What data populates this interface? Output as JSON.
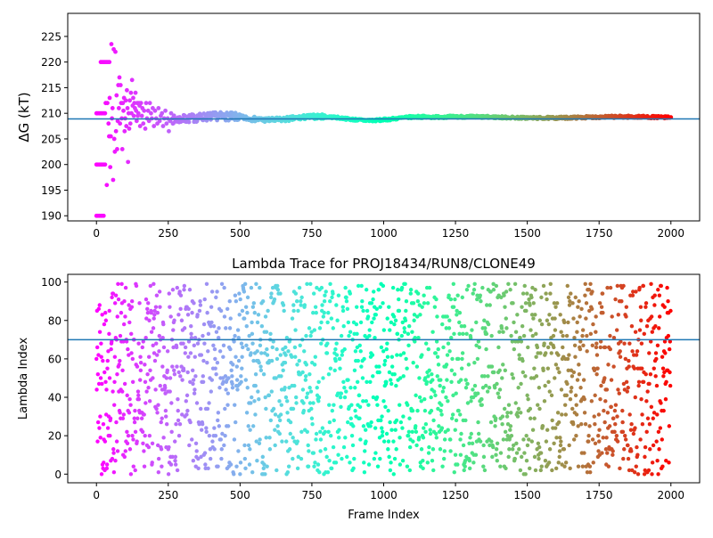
{
  "chart_data": [
    {
      "type": "scatter",
      "title": "",
      "xlabel": "",
      "ylabel": "ΔG (kT)",
      "xlim": [
        -100,
        2100
      ],
      "ylim": [
        189,
        229.5
      ],
      "xticks": [
        0,
        250,
        500,
        750,
        1000,
        1250,
        1500,
        1750,
        2000
      ],
      "yticks": [
        190,
        195,
        200,
        205,
        210,
        215,
        220,
        225
      ],
      "colormap": "rainbow",
      "hline": 208.9,
      "hline_color": "#1f77b4",
      "series": [
        {
          "points": [
            [
              0,
              190
            ],
            [
              5,
              190
            ],
            [
              10,
              190
            ],
            [
              15,
              190
            ],
            [
              20,
              190
            ],
            [
              25,
              190
            ],
            [
              0,
              200
            ],
            [
              5,
              200
            ],
            [
              10,
              200
            ],
            [
              15,
              200
            ],
            [
              20,
              200
            ],
            [
              25,
              200
            ],
            [
              30,
              200
            ],
            [
              0,
              210
            ],
            [
              5,
              210
            ],
            [
              10,
              210
            ],
            [
              15,
              210
            ],
            [
              20,
              210
            ],
            [
              25,
              210
            ],
            [
              30,
              210
            ],
            [
              15,
              220
            ],
            [
              20,
              220
            ],
            [
              25,
              220
            ],
            [
              30,
              220
            ],
            [
              35,
              220
            ],
            [
              40,
              220
            ],
            [
              45,
              220
            ],
            [
              32,
              212
            ],
            [
              36,
              196
            ],
            [
              38,
              212
            ],
            [
              42,
              208
            ],
            [
              44,
              205.5
            ],
            [
              46,
              213
            ],
            [
              48,
              199.5
            ],
            [
              50,
              205.5
            ],
            [
              52,
              223.5
            ],
            [
              54,
              209
            ],
            [
              56,
              211
            ],
            [
              58,
              197
            ],
            [
              60,
              222.5
            ],
            [
              62,
              205
            ],
            [
              64,
              202.5
            ],
            [
              66,
              222
            ],
            [
              68,
              206.5
            ],
            [
              70,
              213.5
            ],
            [
              72,
              203
            ],
            [
              74,
              208.5
            ],
            [
              76,
              215.5
            ],
            [
              78,
              211
            ],
            [
              80,
              217
            ],
            [
              82,
              208
            ],
            [
              84,
              215.5
            ],
            [
              86,
              212
            ],
            [
              88,
              209
            ],
            [
              90,
              203
            ],
            [
              92,
              212
            ],
            [
              94,
              210.5
            ],
            [
              96,
              213
            ],
            [
              98,
              206.5
            ],
            [
              100,
              209
            ],
            [
              102,
              212.5
            ],
            [
              104,
              207.5
            ],
            [
              106,
              214.5
            ],
            [
              108,
              211
            ],
            [
              110,
              200.5
            ],
            [
              112,
              210
            ],
            [
              114,
              207
            ],
            [
              116,
              212.5
            ],
            [
              118,
              208
            ],
            [
              120,
              214
            ],
            [
              122,
              210
            ],
            [
              124,
              216.5
            ],
            [
              126,
              211.5
            ],
            [
              128,
              213
            ],
            [
              130,
              209.5
            ],
            [
              132,
              212
            ],
            [
              134,
              211
            ],
            [
              136,
              214
            ],
            [
              138,
              210.5
            ],
            [
              140,
              208.5
            ],
            [
              142,
              212
            ],
            [
              144,
              209.5
            ],
            [
              146,
              210
            ],
            [
              148,
              212
            ],
            [
              150,
              211.5
            ],
            [
              152,
              207.5
            ],
            [
              155,
              212
            ],
            [
              158,
              209.5
            ],
            [
              160,
              211
            ],
            [
              163,
              208
            ],
            [
              166,
              210.5
            ],
            [
              170,
              207
            ],
            [
              173,
              212
            ],
            [
              176,
              209
            ],
            [
              180,
              210.5
            ],
            [
              183,
              208.5
            ],
            [
              186,
              212
            ],
            [
              190,
              210
            ],
            [
              193,
              209
            ],
            [
              196,
              211
            ],
            [
              200,
              207.5
            ],
            [
              204,
              210.5
            ],
            [
              208,
              209
            ],
            [
              212,
              208
            ],
            [
              216,
              211
            ],
            [
              220,
              208.5
            ],
            [
              224,
              209.5
            ],
            [
              228,
              210
            ],
            [
              232,
              207.5
            ],
            [
              236,
              209
            ],
            [
              240,
              210.5
            ],
            [
              244,
              208
            ],
            [
              248,
              209
            ],
            [
              252,
              206.5
            ],
            [
              256,
              208.5
            ],
            [
              260,
              210
            ],
            [
              264,
              209
            ]
          ]
        }
      ]
    },
    {
      "type": "scatter",
      "title": "Lambda Trace for PROJ18434/RUN8/CLONE49",
      "xlabel": "Frame Index",
      "ylabel": "Lambda Index",
      "xlim": [
        -100,
        2100
      ],
      "ylim": [
        -4.5,
        104
      ],
      "xticks": [
        0,
        250,
        500,
        750,
        1000,
        1250,
        1500,
        1750,
        2000
      ],
      "yticks": [
        0,
        20,
        40,
        60,
        80,
        100
      ],
      "colormap": "rainbow",
      "hline": 70,
      "hline_color": "#1f77b4",
      "n_points": 2000,
      "x_range": [
        0,
        2000
      ],
      "y_range": [
        0,
        99
      ]
    }
  ]
}
